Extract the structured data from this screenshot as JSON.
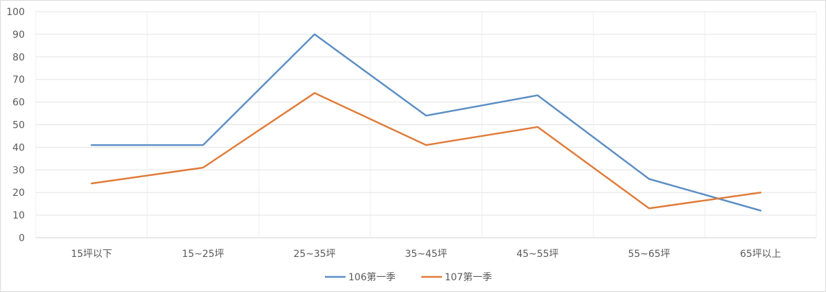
{
  "chart_data": {
    "type": "line",
    "categories": [
      "15坪以下",
      "15~25坪",
      "25~35坪",
      "35~45坪",
      "45~55坪",
      "55~65坪",
      "65坪以上"
    ],
    "series": [
      {
        "name": "106第一季",
        "values": [
          41,
          41,
          90,
          54,
          63,
          26,
          12
        ],
        "color": "#5b8ec4"
      },
      {
        "name": "107第一季",
        "values": [
          24,
          31,
          64,
          41,
          49,
          13,
          20
        ],
        "color": "#e07b39"
      }
    ],
    "title": "",
    "xlabel": "",
    "ylabel": "",
    "ylim": [
      0,
      100
    ],
    "yticks": [
      0,
      10,
      20,
      30,
      40,
      50,
      60,
      70,
      80,
      90,
      100
    ],
    "grid": true,
    "legend": "bottom"
  }
}
